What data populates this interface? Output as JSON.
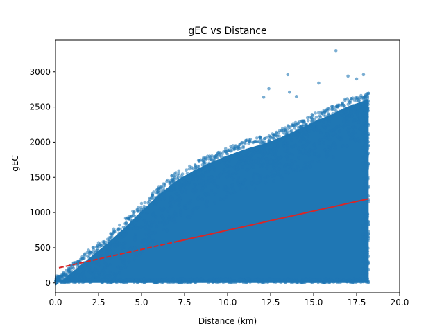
{
  "chart_data": {
    "type": "scatter",
    "title": "gEC vs Distance",
    "xlabel": "Distance (km)",
    "ylabel": "gEC",
    "xlim": [
      0,
      20
    ],
    "ylim": [
      -140,
      3450
    ],
    "xticks": [
      0,
      2.5,
      5,
      7.5,
      10,
      12.5,
      15,
      17.5,
      20
    ],
    "xtick_labels": [
      "0.0",
      "2.5",
      "5.0",
      "7.5",
      "10.0",
      "12.5",
      "15.0",
      "17.5",
      "20.0"
    ],
    "yticks": [
      0,
      500,
      1000,
      1500,
      2000,
      2500,
      3000
    ],
    "ytick_labels": [
      "0",
      "500",
      "1000",
      "1500",
      "2000",
      "2500",
      "3000"
    ],
    "grid": false,
    "series": [
      {
        "kind": "scatter",
        "color": "#1f77b4",
        "x_range": [
          0,
          18.2
        ],
        "y_range": [
          0,
          3300
        ],
        "upper_envelope": [
          [
            0,
            50
          ],
          [
            1,
            250
          ],
          [
            2,
            450
          ],
          [
            3,
            650
          ],
          [
            4,
            870
          ],
          [
            5,
            1110
          ],
          [
            6,
            1340
          ],
          [
            7,
            1540
          ],
          [
            8,
            1680
          ],
          [
            9,
            1800
          ],
          [
            10,
            1900
          ],
          [
            11,
            1990
          ],
          [
            12,
            2060
          ],
          [
            13,
            2150
          ],
          [
            14,
            2260
          ],
          [
            15,
            2380
          ],
          [
            16,
            2480
          ],
          [
            17,
            2600
          ],
          [
            18.2,
            2700
          ]
        ],
        "outliers": [
          [
            12.1,
            2640
          ],
          [
            12.4,
            2760
          ],
          [
            13.5,
            2960
          ],
          [
            13.6,
            2710
          ],
          [
            14.0,
            2650
          ],
          [
            15.3,
            2840
          ],
          [
            16.3,
            3300
          ],
          [
            17.0,
            2940
          ],
          [
            17.5,
            2900
          ],
          [
            17.9,
            2960
          ]
        ]
      },
      {
        "kind": "fit-line",
        "color": "#d62728",
        "style": "dashed-solid",
        "x": [
          0.2,
          18.2
        ],
        "y": [
          215,
          1195
        ]
      }
    ]
  }
}
